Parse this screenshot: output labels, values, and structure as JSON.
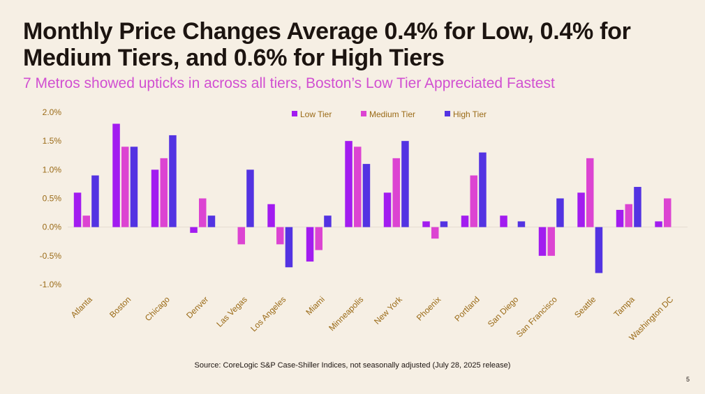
{
  "title": "Monthly Price Changes Average 0.4% for Low, 0.4% for Medium Tiers, and 0.6% for High Tiers",
  "subtitle": "7 Metros showed upticks in across all tiers, Boston’s Low Tier Appreciated Fastest",
  "source": "Source: CoreLogic S&P Case-Shiller Indices, not seasonally adjusted (July 28, 2025 release)",
  "page_number": "5",
  "colors": {
    "low": "#a21cf0",
    "medium": "#dc44d2",
    "high": "#5333e2",
    "axis_text": "#9a6a16",
    "zero_line": "#e6dcd0"
  },
  "chart_data": {
    "type": "bar",
    "title": "",
    "xlabel": "",
    "ylabel": "",
    "ylim": [
      -1.0,
      2.0
    ],
    "yticks": [
      "2.0%",
      "1.5%",
      "1.0%",
      "0.5%",
      "0.0%",
      "-0.5%",
      "-1.0%"
    ],
    "ytick_values": [
      2.0,
      1.5,
      1.0,
      0.5,
      0.0,
      -0.5,
      -1.0
    ],
    "legend_position": "top-center",
    "categories": [
      "Atlanta",
      "Boston",
      "Chicago",
      "Denver",
      "Las Vegas",
      "Los Angeles",
      "Miami",
      "Minneapolis",
      "New York",
      "Phoenix",
      "Portland",
      "San Diego",
      "San Francisco",
      "Seattle",
      "Tampa",
      "Washington DC"
    ],
    "series": [
      {
        "name": "Low Tier",
        "color_key": "low",
        "values": [
          0.6,
          1.8,
          1.0,
          -0.1,
          0.0,
          0.4,
          -0.6,
          1.5,
          0.6,
          0.1,
          0.2,
          0.2,
          -0.5,
          0.6,
          0.3,
          0.1
        ]
      },
      {
        "name": "Medium Tier",
        "color_key": "medium",
        "values": [
          0.2,
          1.4,
          1.2,
          0.5,
          -0.3,
          -0.3,
          -0.4,
          1.4,
          1.2,
          -0.2,
          0.9,
          0.0,
          -0.5,
          1.2,
          0.4,
          0.5
        ]
      },
      {
        "name": "High Tier",
        "color_key": "high",
        "values": [
          0.9,
          1.4,
          1.6,
          0.2,
          1.0,
          -0.7,
          0.2,
          1.1,
          1.5,
          0.1,
          1.3,
          0.1,
          0.5,
          -0.8,
          0.7,
          null
        ]
      }
    ]
  }
}
